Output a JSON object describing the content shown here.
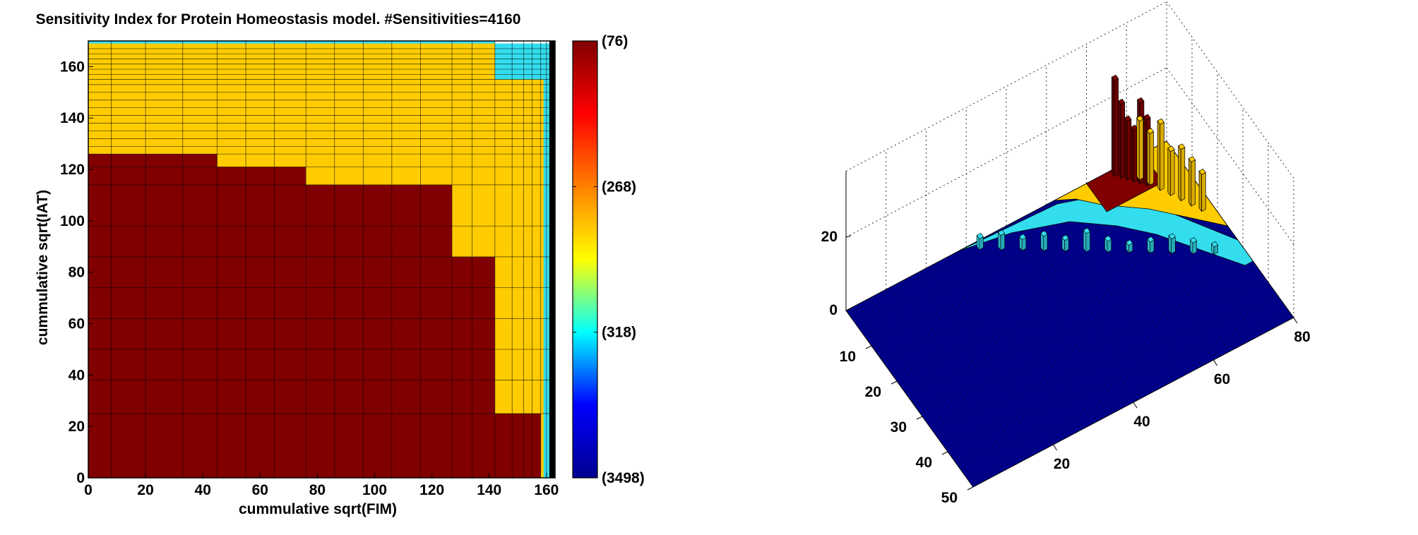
{
  "chart_data": [
    {
      "type": "heatmap",
      "title": "Sensitivity Index for Protein Homeostasis model. #Sensitivities=4160",
      "xlabel": "cummulative sqrt(FIM)",
      "ylabel": "cummulative sqrt(IAT)",
      "xlim": [
        0,
        163
      ],
      "ylim": [
        0,
        170
      ],
      "xticks": [
        "0",
        "20",
        "40",
        "60",
        "80",
        "100",
        "120",
        "140",
        "160"
      ],
      "yticks": [
        "0",
        "20",
        "40",
        "60",
        "80",
        "100",
        "120",
        "140",
        "160"
      ],
      "grid": true,
      "colors": {
        "red": "#800000",
        "yellow": "#ffcc00",
        "cyan": "#33ddee",
        "black": "#000000"
      },
      "regions": [
        {
          "class": "red",
          "x": [
            0,
            158
          ],
          "y": [
            0,
            25
          ]
        },
        {
          "class": "red",
          "x": [
            0,
            142
          ],
          "y": [
            25,
            86
          ]
        },
        {
          "class": "red",
          "x": [
            0,
            127
          ],
          "y": [
            86,
            114
          ]
        },
        {
          "class": "red",
          "x": [
            0,
            76
          ],
          "y": [
            114,
            121
          ]
        },
        {
          "class": "red",
          "x": [
            0,
            45
          ],
          "y": [
            121,
            126
          ]
        },
        {
          "class": "yellow",
          "x": [
            158,
            161
          ],
          "y": [
            0,
            25
          ]
        },
        {
          "class": "yellow",
          "x": [
            142,
            161
          ],
          "y": [
            25,
            86
          ]
        },
        {
          "class": "yellow",
          "x": [
            127,
            161
          ],
          "y": [
            86,
            114
          ]
        },
        {
          "class": "yellow",
          "x": [
            76,
            161
          ],
          "y": [
            114,
            121
          ]
        },
        {
          "class": "yellow",
          "x": [
            45,
            161
          ],
          "y": [
            121,
            126
          ]
        },
        {
          "class": "yellow",
          "x": [
            0,
            161
          ],
          "y": [
            126,
            155
          ]
        },
        {
          "class": "yellow",
          "x": [
            0,
            142
          ],
          "y": [
            155,
            169
          ]
        },
        {
          "class": "cyan",
          "x": [
            142,
            161
          ],
          "y": [
            155,
            169
          ]
        },
        {
          "class": "cyan",
          "x": [
            159,
            161
          ],
          "y": [
            0,
            155
          ]
        },
        {
          "class": "cyan",
          "x": [
            0,
            142
          ],
          "y": [
            169,
            170
          ]
        },
        {
          "class": "black",
          "x": [
            161,
            163
          ],
          "y": [
            0,
            170
          ]
        }
      ],
      "grid_x": [
        8,
        20,
        33,
        45,
        55,
        65,
        76,
        86,
        96,
        106,
        116,
        127,
        134,
        142,
        148,
        152,
        155,
        158,
        160
      ],
      "grid_y": [
        25,
        38,
        50,
        62,
        74,
        86,
        98,
        114,
        121,
        126,
        129,
        132,
        135,
        138,
        141,
        144,
        147,
        150,
        153,
        155,
        157,
        159,
        161,
        163,
        165,
        167
      ],
      "colorbar": {
        "labels": [
          "(76)",
          "(268)",
          "(318)",
          "(3498)"
        ],
        "stops": [
          "#00008f",
          "#0000ff",
          "#00ffff",
          "#ffff00",
          "#ff8000",
          "#ff0000",
          "#800000"
        ]
      }
    },
    {
      "type": "bar3d",
      "xticks": [
        "10",
        "20",
        "30",
        "40",
        "50"
      ],
      "yticks": [
        "20",
        "40",
        "60",
        "80"
      ],
      "zticks": [
        "0",
        "20"
      ],
      "base_color": "#00008f",
      "colors": {
        "cyan": "#33ddee",
        "yellow": "#ffcc00",
        "red": "#800000"
      },
      "bars": [
        {
          "class": "red",
          "heights": [
            26,
            20,
            16,
            14,
            22,
            18
          ]
        },
        {
          "class": "yellow",
          "heights": [
            16,
            14,
            18,
            12,
            14,
            12,
            10
          ]
        },
        {
          "class": "cyan",
          "heights": [
            3,
            4,
            3,
            4,
            3,
            5,
            3,
            2,
            3,
            4,
            3,
            2
          ]
        }
      ]
    }
  ]
}
